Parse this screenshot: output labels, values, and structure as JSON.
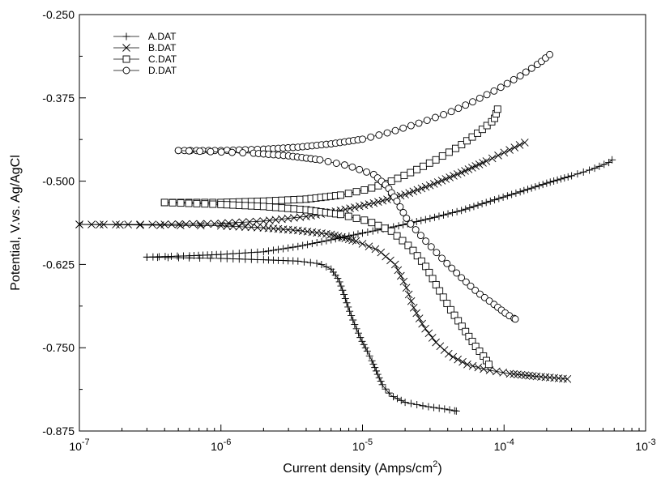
{
  "chart_data": {
    "type": "line",
    "title": "",
    "xlabel": "Current density (Amps/cm²)",
    "xlabel_main": "Current density (Amps/cm",
    "xlabel_sup": "2",
    "xlabel_end": ")",
    "ylabel": "Potential, V.vs. Ag/AgCl",
    "x_scale": "log",
    "xlim": [
      1e-07,
      0.001
    ],
    "ylim": [
      -0.875,
      -0.25
    ],
    "x_ticks": [
      {
        "value": 1e-07,
        "base": "10",
        "exp": "-7"
      },
      {
        "value": 1e-06,
        "base": "10",
        "exp": "-6"
      },
      {
        "value": 1e-05,
        "base": "10",
        "exp": "-5"
      },
      {
        "value": 0.0001,
        "base": "10",
        "exp": "-4"
      },
      {
        "value": 0.001,
        "base": "10",
        "exp": "-3"
      }
    ],
    "y_ticks": [
      {
        "value": -0.25,
        "label": "-0.250"
      },
      {
        "value": -0.375,
        "label": "-0.375"
      },
      {
        "value": -0.5,
        "label": "-0.500"
      },
      {
        "value": -0.625,
        "label": "-0.625"
      },
      {
        "value": -0.75,
        "label": "-0.750"
      },
      {
        "value": -0.875,
        "label": "-0.875"
      }
    ],
    "grid": false,
    "legend_position": "top-left",
    "series": [
      {
        "name": "A.DAT",
        "marker": "plus",
        "anodic": [
          [
            3e-07,
            -0.614
          ],
          [
            6e-07,
            -0.612
          ],
          [
            1e-06,
            -0.61
          ],
          [
            2e-06,
            -0.606
          ],
          [
            3.5e-06,
            -0.598
          ],
          [
            6e-06,
            -0.588
          ],
          [
            1e-05,
            -0.578
          ],
          [
            1.8e-05,
            -0.567
          ],
          [
            3e-05,
            -0.556
          ],
          [
            5e-05,
            -0.544
          ],
          [
            8e-05,
            -0.53
          ],
          [
            0.00013,
            -0.516
          ],
          [
            0.0002,
            -0.503
          ],
          [
            0.0003,
            -0.492
          ],
          [
            0.00042,
            -0.482
          ],
          [
            0.00055,
            -0.472
          ],
          [
            0.00058,
            -0.468
          ]
        ],
        "cathodic": [
          [
            3e-07,
            -0.614
          ],
          [
            1e-06,
            -0.616
          ],
          [
            2e-06,
            -0.618
          ],
          [
            3.5e-06,
            -0.62
          ],
          [
            5e-06,
            -0.624
          ],
          [
            6e-06,
            -0.632
          ],
          [
            6.8e-06,
            -0.648
          ],
          [
            7.4e-06,
            -0.67
          ],
          [
            8e-06,
            -0.692
          ],
          [
            8.8e-06,
            -0.715
          ],
          [
            9.8e-06,
            -0.738
          ],
          [
            1.08e-05,
            -0.755
          ],
          [
            1.18e-05,
            -0.772
          ],
          [
            1.28e-05,
            -0.79
          ],
          [
            1.4e-05,
            -0.808
          ],
          [
            1.6e-05,
            -0.822
          ],
          [
            2e-05,
            -0.832
          ],
          [
            2.8e-05,
            -0.838
          ],
          [
            3.8e-05,
            -0.842
          ],
          [
            4.6e-05,
            -0.845
          ]
        ]
      },
      {
        "name": "B.DAT",
        "marker": "cross",
        "anodic": [
          [
            1e-07,
            -0.565
          ],
          [
            4e-07,
            -0.565
          ],
          [
            9e-07,
            -0.564
          ],
          [
            2e-06,
            -0.56
          ],
          [
            4e-06,
            -0.553
          ],
          [
            7e-06,
            -0.544
          ],
          [
            1.2e-05,
            -0.533
          ],
          [
            2e-05,
            -0.52
          ],
          [
            3.2e-05,
            -0.504
          ],
          [
            5e-05,
            -0.487
          ],
          [
            7.5e-05,
            -0.47
          ],
          [
            0.000105,
            -0.455
          ],
          [
            0.00014,
            -0.442
          ]
        ],
        "cathodic": [
          [
            1e-07,
            -0.565
          ],
          [
            1e-06,
            -0.567
          ],
          [
            2e-06,
            -0.57
          ],
          [
            3.5e-06,
            -0.574
          ],
          [
            6e-06,
            -0.58
          ],
          [
            9e-06,
            -0.59
          ],
          [
            1.3e-05,
            -0.604
          ],
          [
            1.7e-05,
            -0.625
          ],
          [
            2e-05,
            -0.655
          ],
          [
            2.3e-05,
            -0.69
          ],
          [
            2.7e-05,
            -0.718
          ],
          [
            3.3e-05,
            -0.742
          ],
          [
            4.2e-05,
            -0.762
          ],
          [
            5.5e-05,
            -0.775
          ],
          [
            7.5e-05,
            -0.783
          ],
          [
            0.00011,
            -0.789
          ],
          [
            0.00017,
            -0.793
          ],
          [
            0.00028,
            -0.797
          ]
        ]
      },
      {
        "name": "C.DAT",
        "marker": "square",
        "anodic": [
          [
            4e-07,
            -0.532
          ],
          [
            1e-06,
            -0.532
          ],
          [
            2e-06,
            -0.53
          ],
          [
            4e-06,
            -0.527
          ],
          [
            7e-06,
            -0.521
          ],
          [
            1.1e-05,
            -0.512
          ],
          [
            1.6e-05,
            -0.5
          ],
          [
            2.3e-05,
            -0.485
          ],
          [
            3.3e-05,
            -0.468
          ],
          [
            4.8e-05,
            -0.448
          ],
          [
            6.5e-05,
            -0.428
          ],
          [
            8.5e-05,
            -0.408
          ],
          [
            9e-05,
            -0.392
          ]
        ],
        "cathodic": [
          [
            4e-07,
            -0.532
          ],
          [
            1e-06,
            -0.535
          ],
          [
            2e-06,
            -0.538
          ],
          [
            4e-06,
            -0.543
          ],
          [
            7e-06,
            -0.55
          ],
          [
            1.1e-05,
            -0.56
          ],
          [
            1.6e-05,
            -0.575
          ],
          [
            2.2e-05,
            -0.6
          ],
          [
            2.8e-05,
            -0.628
          ],
          [
            3.4e-05,
            -0.66
          ],
          [
            4.2e-05,
            -0.693
          ],
          [
            5.2e-05,
            -0.722
          ],
          [
            6.3e-05,
            -0.748
          ],
          [
            7.3e-05,
            -0.765
          ],
          [
            7.8e-05,
            -0.775
          ]
        ]
      },
      {
        "name": "D.DAT",
        "marker": "circle",
        "anodic": [
          [
            5e-07,
            -0.454
          ],
          [
            1e-06,
            -0.454
          ],
          [
            2e-06,
            -0.452
          ],
          [
            3.5e-06,
            -0.449
          ],
          [
            6e-06,
            -0.444
          ],
          [
            1e-05,
            -0.437
          ],
          [
            1.6e-05,
            -0.426
          ],
          [
            2.5e-05,
            -0.413
          ],
          [
            4e-05,
            -0.398
          ],
          [
            6e-05,
            -0.381
          ],
          [
            9e-05,
            -0.362
          ],
          [
            0.00013,
            -0.342
          ],
          [
            0.00018,
            -0.322
          ],
          [
            0.00021,
            -0.31
          ]
        ],
        "cathodic": [
          [
            5e-07,
            -0.454
          ],
          [
            1.7e-06,
            -0.458
          ],
          [
            3e-06,
            -0.462
          ],
          [
            5e-06,
            -0.468
          ],
          [
            8e-06,
            -0.477
          ],
          [
            1.2e-05,
            -0.49
          ],
          [
            1.5e-05,
            -0.508
          ],
          [
            1.75e-05,
            -0.53
          ],
          [
            2.1e-05,
            -0.56
          ],
          [
            2.8e-05,
            -0.59
          ],
          [
            3.8e-05,
            -0.62
          ],
          [
            5e-05,
            -0.645
          ],
          [
            6.5e-05,
            -0.667
          ],
          [
            8.5e-05,
            -0.685
          ],
          [
            0.000105,
            -0.7
          ],
          [
            0.00012,
            -0.707
          ]
        ]
      }
    ]
  }
}
